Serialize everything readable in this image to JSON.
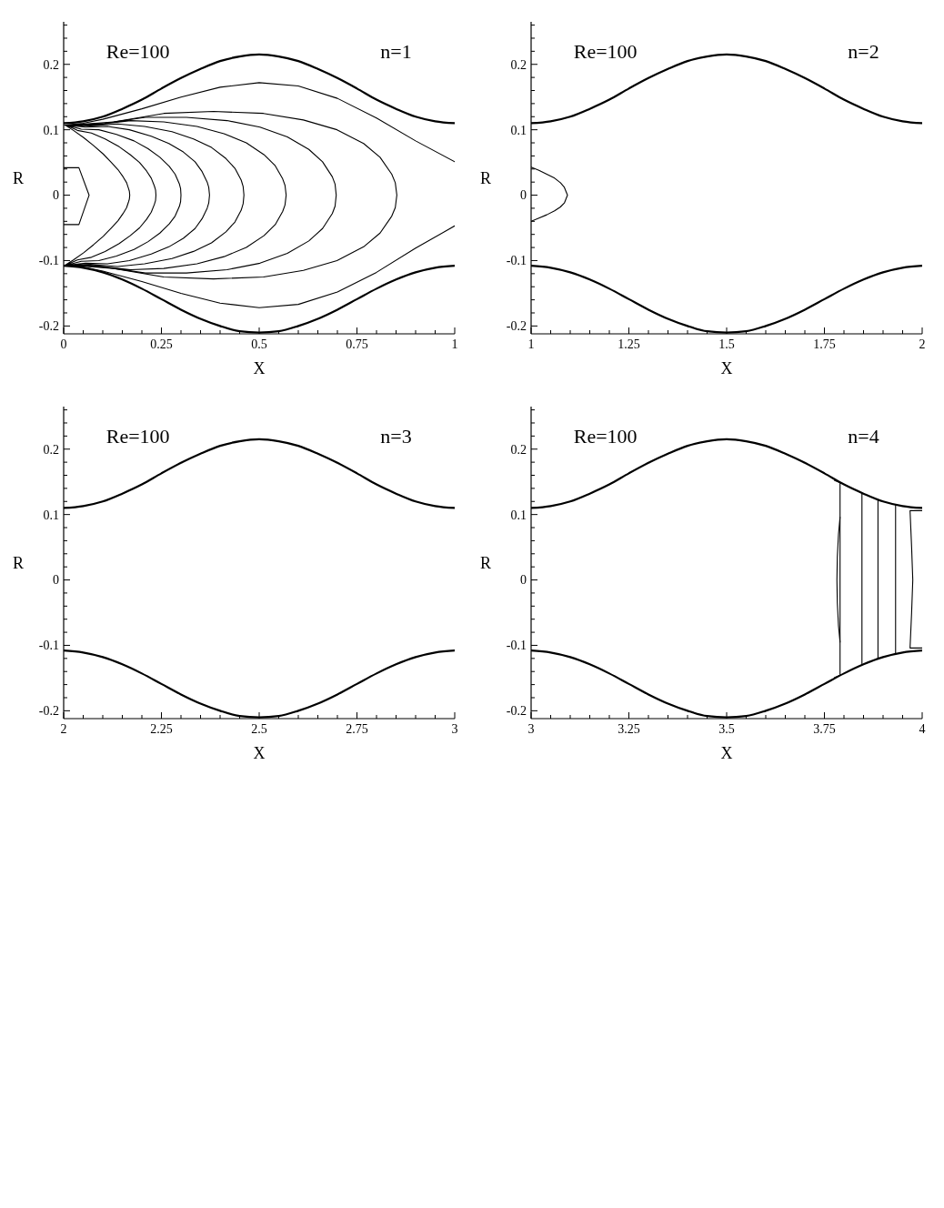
{
  "chart_data": [
    {
      "type": "line",
      "annotations": [
        "Re=100",
        "n=1"
      ],
      "xlabel": "X",
      "ylabel": "R",
      "xlim": [
        0,
        1
      ],
      "ylim": [
        -0.212,
        0.265
      ],
      "xticks": [
        0,
        {
          "value": 0.05,
          "label": null
        },
        {
          "value": 0.1,
          "label": null
        },
        {
          "value": 0.15,
          "label": null
        },
        {
          "value": 0.2,
          "label": null
        },
        0.25,
        {
          "value": 0.3,
          "label": null
        },
        {
          "value": 0.35,
          "label": null
        },
        {
          "value": 0.4,
          "label": null
        },
        {
          "value": 0.45,
          "label": null
        },
        0.5,
        {
          "value": 0.55,
          "label": null
        },
        {
          "value": 0.6,
          "label": null
        },
        {
          "value": 0.65,
          "label": null
        },
        {
          "value": 0.7,
          "label": null
        },
        0.75,
        {
          "value": 0.8,
          "label": null
        },
        {
          "value": 0.85,
          "label": null
        },
        {
          "value": 0.9,
          "label": null
        },
        {
          "value": 0.95,
          "label": null
        },
        1
      ],
      "yticks": [
        -0.2,
        {
          "value": -0.18,
          "label": null
        },
        {
          "value": -0.16,
          "label": null
        },
        {
          "value": -0.14,
          "label": null
        },
        {
          "value": -0.12,
          "label": null
        },
        -0.1,
        {
          "value": -0.08,
          "label": null
        },
        {
          "value": -0.06,
          "label": null
        },
        {
          "value": -0.04,
          "label": null
        },
        {
          "value": -0.02,
          "label": null
        },
        0,
        {
          "value": 0.02,
          "label": null
        },
        {
          "value": 0.04,
          "label": null
        },
        {
          "value": 0.06,
          "label": null
        },
        {
          "value": 0.08,
          "label": null
        },
        0.1,
        {
          "value": 0.12,
          "label": null
        },
        {
          "value": 0.14,
          "label": null
        },
        {
          "value": 0.16,
          "label": null
        },
        {
          "value": 0.18,
          "label": null
        },
        0.2,
        {
          "value": 0.22,
          "label": null
        },
        {
          "value": 0.24,
          "label": null
        },
        {
          "value": 0.26,
          "label": null
        }
      ],
      "series": [
        {
          "color": "#000000",
          "x": [
            0,
            0.05,
            0.1,
            0.15,
            0.2,
            0.25,
            0.3,
            0.35,
            0.4,
            0.45,
            0.5,
            0.55,
            0.6,
            0.65,
            0.7,
            0.75,
            0.8,
            0.85,
            0.9,
            0.95,
            1
          ],
          "values": [
            0.11,
            0.113,
            0.12,
            0.132,
            0.146,
            0.163,
            0.179,
            0.193,
            0.205,
            0.212,
            0.215,
            0.212,
            0.205,
            0.193,
            0.179,
            0.163,
            0.146,
            0.132,
            0.12,
            0.113,
            0.11
          ]
        },
        {
          "color": "#000000",
          "x": [
            0,
            0.05,
            0.1,
            0.15,
            0.2,
            0.25,
            0.3,
            0.35,
            0.4,
            0.45,
            0.5,
            0.55,
            0.6,
            0.65,
            0.7,
            0.75,
            0.8,
            0.85,
            0.9,
            0.95,
            1
          ],
          "values": [
            -0.108,
            -0.111,
            -0.118,
            -0.129,
            -0.143,
            -0.159,
            -0.175,
            -0.189,
            -0.2,
            -0.208,
            -0.21,
            -0.208,
            -0.2,
            -0.189,
            -0.175,
            -0.159,
            -0.143,
            -0.129,
            -0.118,
            -0.111,
            -0.108
          ]
        },
        {
          "color": "#000000",
          "x": [
            0,
            0.039,
            0.065,
            0.039,
            0
          ],
          "values": [
            0.042,
            0.042,
            0,
            -0.045,
            -0.045
          ]
        },
        {
          "color": "#000000",
          "x": [
            1,
            0.9,
            0.8,
            0.7,
            0.6,
            0.5,
            0.4,
            0.3,
            0.2,
            0.1,
            0.05,
            0.002,
            0.004,
            0.025,
            0.051,
            0.076,
            0.101,
            0.122,
            0.139,
            0.152,
            0.161,
            0.166,
            0.168,
            0.169,
            0.168,
            0.166,
            0.161,
            0.152,
            0.139,
            0.122,
            0.101,
            0.076,
            0.051,
            0.025,
            0.004,
            0.006,
            0.035,
            0.071,
            0.106,
            0.142,
            0.17,
            0.194,
            0.212,
            0.224,
            0.232,
            0.235,
            0.236,
            0.235,
            0.232,
            0.224,
            0.212,
            0.194,
            0.17,
            0.142,
            0.106,
            0.071,
            0.035,
            0.006,
            0.008,
            0.045,
            0.09,
            0.135,
            0.18,
            0.216,
            0.246,
            0.27,
            0.285,
            0.296,
            0.299,
            0.3,
            0.299,
            0.296,
            0.285,
            0.27,
            0.246,
            0.216,
            0.18,
            0.135,
            0.09,
            0.045,
            0.008,
            0.01,
            0.056,
            0.112,
            0.168,
            0.224,
            0.269,
            0.306,
            0.336,
            0.354,
            0.367,
            0.371,
            0.373,
            0.371,
            0.367,
            0.354,
            0.336,
            0.306,
            0.269,
            0.224,
            0.168,
            0.112,
            0.056,
            0.01,
            0.012,
            0.069,
            0.138,
            0.207,
            0.277,
            0.332,
            0.378,
            0.415,
            0.438,
            0.454,
            0.459,
            0.461,
            0.459,
            0.454,
            0.438,
            0.415,
            0.378,
            0.332,
            0.277,
            0.207,
            0.138,
            0.069,
            0.012,
            0.014,
            0.085,
            0.171,
            0.256,
            0.341,
            0.41,
            0.467,
            0.512,
            0.541,
            0.56,
            0.566,
            0.569,
            0.566,
            0.56,
            0.541,
            0.512,
            0.467,
            0.41,
            0.341,
            0.256,
            0.171,
            0.085,
            0.014,
            0.016,
            0.105,
            0.209,
            0.314,
            0.418,
            0.502,
            0.572,
            0.627,
            0.662,
            0.687,
            0.694,
            0.697,
            0.694,
            0.687,
            0.662,
            0.627,
            0.572,
            0.502,
            0.418,
            0.314,
            0.209,
            0.105,
            0.016,
            0.002,
            0.05,
            0.1,
            0.2,
            0.3,
            0.4,
            0.5,
            0.6,
            0.7,
            0.8,
            0.9,
            1
          ],
          "values": [
            0.051,
            0.083,
            0.118,
            0.148,
            0.167,
            0.172,
            0.165,
            0.15,
            0.132,
            0.116,
            0.11,
            0.107,
            0.107,
            0.099,
            0.088,
            0.076,
            0.063,
            0.05,
            0.039,
            0.028,
            0.019,
            0.01,
            0.006,
            0,
            -0.006,
            -0.01,
            -0.019,
            -0.028,
            -0.039,
            -0.05,
            -0.063,
            -0.076,
            -0.088,
            -0.099,
            -0.107,
            -0.107,
            -0.099,
            -0.095,
            -0.086,
            -0.074,
            -0.062,
            -0.05,
            -0.037,
            -0.026,
            -0.014,
            -0.008,
            0,
            0.008,
            0.014,
            0.026,
            0.037,
            0.05,
            0.062,
            0.074,
            0.086,
            0.095,
            0.099,
            0.107,
            0.107,
            0.101,
            0.1,
            0.093,
            0.083,
            0.071,
            0.058,
            0.044,
            0.032,
            0.017,
            0.01,
            0,
            -0.01,
            -0.017,
            -0.032,
            -0.044,
            -0.058,
            -0.071,
            -0.083,
            -0.093,
            -0.1,
            -0.101,
            -0.107,
            -0.107,
            -0.104,
            -0.105,
            -0.1,
            -0.09,
            -0.079,
            -0.066,
            -0.051,
            -0.036,
            -0.02,
            -0.012,
            0,
            0.012,
            0.02,
            0.036,
            0.051,
            0.066,
            0.079,
            0.09,
            0.1,
            0.105,
            0.104,
            0.107,
            0.107,
            0.106,
            0.109,
            0.105,
            0.097,
            0.086,
            0.073,
            0.056,
            0.041,
            0.023,
            0.013,
            0,
            -0.013,
            -0.023,
            -0.041,
            -0.056,
            -0.073,
            -0.086,
            -0.097,
            -0.105,
            -0.109,
            -0.106,
            -0.107,
            -0.107,
            -0.108,
            -0.114,
            -0.112,
            -0.105,
            -0.094,
            -0.08,
            -0.062,
            -0.045,
            -0.025,
            -0.015,
            0,
            0.015,
            0.025,
            0.045,
            0.062,
            0.08,
            0.094,
            0.105,
            0.112,
            0.114,
            0.108,
            0.107,
            0.107,
            0.11,
            0.119,
            0.119,
            0.114,
            0.104,
            0.089,
            0.07,
            0.051,
            0.028,
            0.017,
            0,
            -0.017,
            -0.028,
            -0.051,
            -0.07,
            -0.089,
            -0.104,
            -0.114,
            -0.119,
            -0.119,
            -0.11,
            -0.107,
            -0.107,
            -0.11,
            -0.116,
            -0.132,
            -0.15,
            -0.165,
            -0.172,
            -0.167,
            -0.148,
            -0.118,
            -0.081,
            -0.047
          ]
        },
        {
          "color": "#000000",
          "x": [
            0.018,
            0.128,
            0.256,
            0.383,
            0.511,
            0.613,
            0.699,
            0.767,
            0.809,
            0.839,
            0.848,
            0.852,
            0.848,
            0.839,
            0.809,
            0.767,
            0.699,
            0.613,
            0.511,
            0.383,
            0.256,
            0.128,
            0.018
          ],
          "values": [
            0.107,
            0.112,
            0.125,
            0.128,
            0.125,
            0.115,
            0.1,
            0.079,
            0.058,
            0.032,
            0.019,
            0,
            -0.019,
            -0.032,
            -0.058,
            -0.079,
            -0.1,
            -0.115,
            -0.125,
            -0.128,
            -0.125,
            -0.112,
            -0.107
          ]
        }
      ]
    },
    {
      "type": "line",
      "annotations": [
        "Re=100",
        "n=2"
      ],
      "xlabel": "X",
      "ylabel": "R",
      "xlim": [
        1,
        2
      ],
      "ylim": [
        -0.212,
        0.265
      ],
      "xticks": [
        1,
        {
          "value": 1.05,
          "label": null
        },
        {
          "value": 1.1,
          "label": null
        },
        {
          "value": 1.15,
          "label": null
        },
        {
          "value": 1.2,
          "label": null
        },
        1.25,
        {
          "value": 1.3,
          "label": null
        },
        {
          "value": 1.35,
          "label": null
        },
        {
          "value": 1.4,
          "label": null
        },
        {
          "value": 1.45,
          "label": null
        },
        1.5,
        {
          "value": 1.55,
          "label": null
        },
        {
          "value": 1.6,
          "label": null
        },
        {
          "value": 1.65,
          "label": null
        },
        {
          "value": 1.7,
          "label": null
        },
        1.75,
        {
          "value": 1.8,
          "label": null
        },
        {
          "value": 1.85,
          "label": null
        },
        {
          "value": 1.9,
          "label": null
        },
        {
          "value": 1.95,
          "label": null
        },
        2
      ],
      "yticks": [
        -0.2,
        {
          "value": -0.18,
          "label": null
        },
        {
          "value": -0.16,
          "label": null
        },
        {
          "value": -0.14,
          "label": null
        },
        {
          "value": -0.12,
          "label": null
        },
        -0.1,
        {
          "value": -0.08,
          "label": null
        },
        {
          "value": -0.06,
          "label": null
        },
        {
          "value": -0.04,
          "label": null
        },
        {
          "value": -0.02,
          "label": null
        },
        0,
        {
          "value": 0.02,
          "label": null
        },
        {
          "value": 0.04,
          "label": null
        },
        {
          "value": 0.06,
          "label": null
        },
        {
          "value": 0.08,
          "label": null
        },
        0.1,
        {
          "value": 0.12,
          "label": null
        },
        {
          "value": 0.14,
          "label": null
        },
        {
          "value": 0.16,
          "label": null
        },
        {
          "value": 0.18,
          "label": null
        },
        0.2,
        {
          "value": 0.22,
          "label": null
        },
        {
          "value": 0.24,
          "label": null
        },
        {
          "value": 0.26,
          "label": null
        }
      ],
      "series": [
        {
          "color": "#000000",
          "x": [
            1,
            1.05,
            1.1,
            1.15,
            1.2,
            1.25,
            1.3,
            1.35,
            1.4,
            1.45,
            1.5,
            1.55,
            1.6,
            1.65,
            1.7,
            1.75,
            1.8,
            1.85,
            1.9,
            1.95,
            2
          ],
          "values": [
            0.11,
            0.113,
            0.12,
            0.132,
            0.146,
            0.163,
            0.179,
            0.193,
            0.205,
            0.212,
            0.215,
            0.212,
            0.205,
            0.193,
            0.179,
            0.163,
            0.146,
            0.132,
            0.12,
            0.113,
            0.11
          ]
        },
        {
          "color": "#000000",
          "x": [
            1,
            1.05,
            1.1,
            1.15,
            1.2,
            1.25,
            1.3,
            1.35,
            1.4,
            1.45,
            1.5,
            1.55,
            1.6,
            1.65,
            1.7,
            1.75,
            1.8,
            1.85,
            1.9,
            1.95,
            2
          ],
          "values": [
            -0.108,
            -0.111,
            -0.118,
            -0.129,
            -0.143,
            -0.159,
            -0.175,
            -0.189,
            -0.2,
            -0.208,
            -0.21,
            -0.208,
            -0.2,
            -0.189,
            -0.175,
            -0.159,
            -0.143,
            -0.129,
            -0.118,
            -0.111,
            -0.108
          ]
        },
        {
          "color": "#000000",
          "x": [
            1,
            1.02,
            1.04,
            1.06,
            1.075,
            1.085,
            1.093,
            1.085,
            1.075,
            1.06,
            1.04,
            1.02,
            1
          ],
          "values": [
            0.043,
            0.038,
            0.032,
            0.026,
            0.019,
            0.012,
            0,
            -0.012,
            -0.018,
            -0.024,
            -0.03,
            -0.035,
            -0.04
          ]
        }
      ]
    },
    {
      "type": "line",
      "annotations": [
        "Re=100",
        "n=3"
      ],
      "xlabel": "X",
      "ylabel": "R",
      "xlim": [
        2,
        3
      ],
      "ylim": [
        -0.212,
        0.265
      ],
      "xticks": [
        2,
        {
          "value": 2.05,
          "label": null
        },
        {
          "value": 2.1,
          "label": null
        },
        {
          "value": 2.15,
          "label": null
        },
        {
          "value": 2.2,
          "label": null
        },
        2.25,
        {
          "value": 2.3,
          "label": null
        },
        {
          "value": 2.35,
          "label": null
        },
        {
          "value": 2.4,
          "label": null
        },
        {
          "value": 2.45,
          "label": null
        },
        2.5,
        {
          "value": 2.55,
          "label": null
        },
        {
          "value": 2.6,
          "label": null
        },
        {
          "value": 2.65,
          "label": null
        },
        {
          "value": 2.7,
          "label": null
        },
        2.75,
        {
          "value": 2.8,
          "label": null
        },
        {
          "value": 2.85,
          "label": null
        },
        {
          "value": 2.9,
          "label": null
        },
        {
          "value": 2.95,
          "label": null
        },
        3
      ],
      "yticks": [
        -0.2,
        {
          "value": -0.18,
          "label": null
        },
        {
          "value": -0.16,
          "label": null
        },
        {
          "value": -0.14,
          "label": null
        },
        {
          "value": -0.12,
          "label": null
        },
        -0.1,
        {
          "value": -0.08,
          "label": null
        },
        {
          "value": -0.06,
          "label": null
        },
        {
          "value": -0.04,
          "label": null
        },
        {
          "value": -0.02,
          "label": null
        },
        0,
        {
          "value": 0.02,
          "label": null
        },
        {
          "value": 0.04,
          "label": null
        },
        {
          "value": 0.06,
          "label": null
        },
        {
          "value": 0.08,
          "label": null
        },
        0.1,
        {
          "value": 0.12,
          "label": null
        },
        {
          "value": 0.14,
          "label": null
        },
        {
          "value": 0.16,
          "label": null
        },
        {
          "value": 0.18,
          "label": null
        },
        0.2,
        {
          "value": 0.22,
          "label": null
        },
        {
          "value": 0.24,
          "label": null
        },
        {
          "value": 0.26,
          "label": null
        }
      ],
      "series": [
        {
          "color": "#000000",
          "x": [
            2,
            2.05,
            2.1,
            2.15,
            2.2,
            2.25,
            2.3,
            2.35,
            2.4,
            2.45,
            2.5,
            2.55,
            2.6,
            2.65,
            2.7,
            2.75,
            2.8,
            2.85,
            2.9,
            2.95,
            3
          ],
          "values": [
            0.11,
            0.113,
            0.12,
            0.132,
            0.146,
            0.163,
            0.179,
            0.193,
            0.205,
            0.212,
            0.215,
            0.212,
            0.205,
            0.193,
            0.179,
            0.163,
            0.146,
            0.132,
            0.12,
            0.113,
            0.11
          ]
        },
        {
          "color": "#000000",
          "x": [
            2,
            2.05,
            2.1,
            2.15,
            2.2,
            2.25,
            2.3,
            2.35,
            2.4,
            2.45,
            2.5,
            2.55,
            2.6,
            2.65,
            2.7,
            2.75,
            2.8,
            2.85,
            2.9,
            2.95,
            3
          ],
          "values": [
            -0.108,
            -0.111,
            -0.118,
            -0.129,
            -0.143,
            -0.159,
            -0.175,
            -0.189,
            -0.2,
            -0.208,
            -0.21,
            -0.208,
            -0.2,
            -0.189,
            -0.175,
            -0.159,
            -0.143,
            -0.129,
            -0.118,
            -0.111,
            -0.108
          ]
        }
      ]
    },
    {
      "type": "line",
      "annotations": [
        "Re=100",
        "n=4"
      ],
      "xlabel": "X",
      "ylabel": "R",
      "xlim": [
        3,
        4
      ],
      "ylim": [
        -0.212,
        0.265
      ],
      "xticks": [
        3,
        {
          "value": 3.05,
          "label": null
        },
        {
          "value": 3.1,
          "label": null
        },
        {
          "value": 3.15,
          "label": null
        },
        {
          "value": 3.2,
          "label": null
        },
        3.25,
        {
          "value": 3.3,
          "label": null
        },
        {
          "value": 3.35,
          "label": null
        },
        {
          "value": 3.4,
          "label": null
        },
        {
          "value": 3.45,
          "label": null
        },
        3.5,
        {
          "value": 3.55,
          "label": null
        },
        {
          "value": 3.6,
          "label": null
        },
        {
          "value": 3.65,
          "label": null
        },
        {
          "value": 3.7,
          "label": null
        },
        3.75,
        {
          "value": 3.8,
          "label": null
        },
        {
          "value": 3.85,
          "label": null
        },
        {
          "value": 3.9,
          "label": null
        },
        {
          "value": 3.95,
          "label": null
        },
        4
      ],
      "yticks": [
        -0.2,
        {
          "value": -0.18,
          "label": null
        },
        {
          "value": -0.16,
          "label": null
        },
        {
          "value": -0.14,
          "label": null
        },
        {
          "value": -0.12,
          "label": null
        },
        -0.1,
        {
          "value": -0.08,
          "label": null
        },
        {
          "value": -0.06,
          "label": null
        },
        {
          "value": -0.04,
          "label": null
        },
        {
          "value": -0.02,
          "label": null
        },
        0,
        {
          "value": 0.02,
          "label": null
        },
        {
          "value": 0.04,
          "label": null
        },
        {
          "value": 0.06,
          "label": null
        },
        {
          "value": 0.08,
          "label": null
        },
        0.1,
        {
          "value": 0.12,
          "label": null
        },
        {
          "value": 0.14,
          "label": null
        },
        {
          "value": 0.16,
          "label": null
        },
        {
          "value": 0.18,
          "label": null
        },
        0.2,
        {
          "value": 0.22,
          "label": null
        },
        {
          "value": 0.24,
          "label": null
        },
        {
          "value": 0.26,
          "label": null
        }
      ],
      "series": [
        {
          "color": "#000000",
          "x": [
            3,
            3.05,
            3.1,
            3.15,
            3.2,
            3.25,
            3.3,
            3.35,
            3.4,
            3.45,
            3.5,
            3.55,
            3.6,
            3.65,
            3.7,
            3.75,
            3.8,
            3.85,
            3.9,
            3.95,
            4
          ],
          "values": [
            0.11,
            0.113,
            0.12,
            0.132,
            0.146,
            0.163,
            0.179,
            0.193,
            0.205,
            0.212,
            0.215,
            0.212,
            0.205,
            0.193,
            0.179,
            0.163,
            0.146,
            0.132,
            0.12,
            0.113,
            0.11
          ]
        },
        {
          "color": "#000000",
          "x": [
            3,
            3.05,
            3.1,
            3.15,
            3.2,
            3.25,
            3.3,
            3.35,
            3.4,
            3.45,
            3.5,
            3.55,
            3.6,
            3.65,
            3.7,
            3.75,
            3.8,
            3.85,
            3.9,
            3.95,
            4
          ],
          "values": [
            -0.108,
            -0.111,
            -0.118,
            -0.129,
            -0.143,
            -0.159,
            -0.175,
            -0.189,
            -0.2,
            -0.208,
            -0.21,
            -0.208,
            -0.2,
            -0.189,
            -0.175,
            -0.159,
            -0.143,
            -0.129,
            -0.118,
            -0.111,
            -0.108
          ]
        },
        {
          "color": "#000000",
          "x": [
            3.776,
            3.79,
            3.79,
            3.776
          ],
          "values": [
            0.152,
            0.149,
            -0.146,
            -0.149
          ]
        },
        {
          "color": "#000000",
          "x": [
            3.79,
            3.786,
            3.783,
            3.782,
            3.783,
            3.786,
            3.79
          ],
          "values": [
            0.096,
            0.07,
            0.035,
            0,
            -0.035,
            -0.07,
            -0.095
          ]
        },
        {
          "color": "#000000",
          "x": [
            3.846,
            3.846
          ],
          "values": [
            0.131,
            -0.128
          ]
        },
        {
          "color": "#000000",
          "x": [
            3.887,
            3.887
          ],
          "values": [
            0.122,
            -0.12
          ]
        },
        {
          "color": "#000000",
          "x": [
            3.932,
            3.932
          ],
          "values": [
            0.114,
            -0.112
          ]
        },
        {
          "color": "#000000",
          "x": [
            4,
            3.969,
            3.973,
            3.976,
            3.973,
            3.969,
            4
          ],
          "values": [
            0.106,
            0.106,
            0.05,
            0,
            -0.05,
            -0.104,
            -0.104
          ]
        }
      ]
    }
  ]
}
